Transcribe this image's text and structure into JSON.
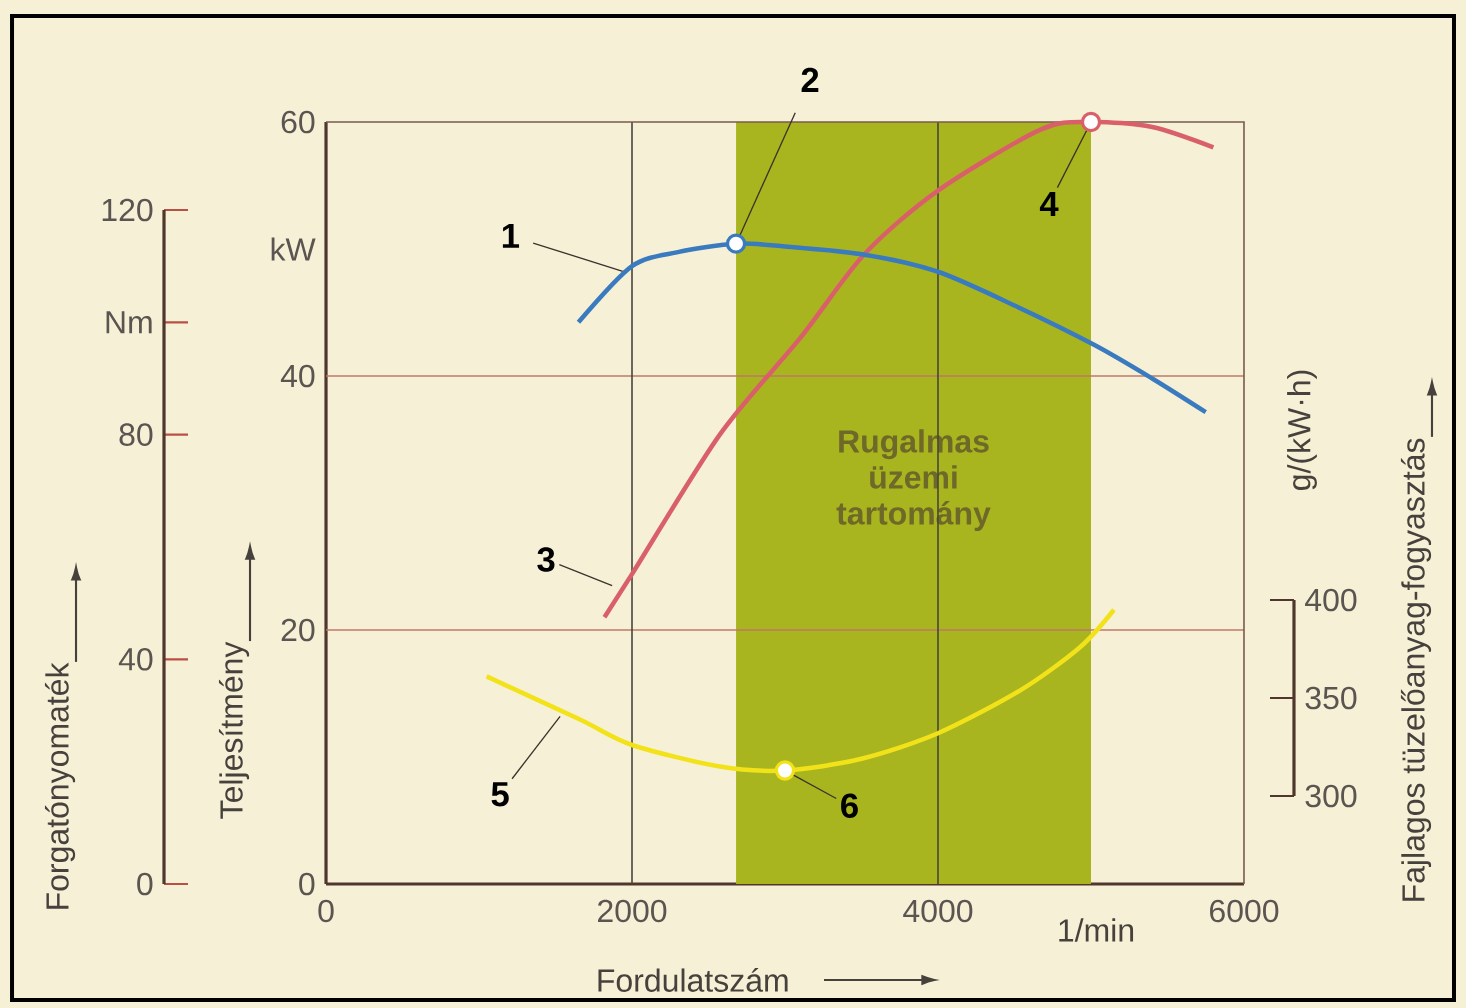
{
  "chart_data": {
    "type": "line",
    "xlabel": "Fordulatszám",
    "ylabel": "Teljesítmény",
    "y2label": "Forgatónyomaték",
    "y3label": "Fajlagos tüzelőanyag-fogyasztás",
    "xlim": [
      0,
      6000
    ],
    "xticks": [
      0,
      2000,
      4000,
      6000
    ],
    "ylim": [
      0,
      60
    ],
    "yticks": [
      0,
      20,
      40,
      {
        "value": 50,
        "label": "kW"
      },
      60
    ],
    "y2lim": [
      0,
      120
    ],
    "y2ticks": [
      0,
      40,
      80,
      {
        "value": 100,
        "label": "Nm"
      },
      120
    ],
    "y3lim": [
      300,
      400
    ],
    "y3ticks": [
      300,
      350,
      400
    ],
    "grid": true,
    "series": [
      {
        "axis": "y2",
        "color": "#3a7bbf",
        "x": [
          1650,
          2000,
          2300,
          2680,
          3000,
          3530,
          4000,
          4500,
          5020,
          5400,
          5750
        ],
        "values": [
          100,
          110,
          112.5,
          114,
          113.5,
          112,
          109,
          103,
          96,
          90,
          84
        ]
      },
      {
        "axis": "y",
        "color": "#d9606a",
        "x": [
          1820,
          2000,
          2575,
          3100,
          3520,
          4000,
          4670,
          5000,
          5400,
          5800
        ],
        "values": [
          21,
          24.4,
          35.4,
          43,
          49.6,
          54.6,
          59.4,
          60,
          59.6,
          58
        ]
      },
      {
        "axis": "y3",
        "color": "#f2e21a",
        "x": [
          1050,
          1660,
          2000,
          2575,
          3000,
          3500,
          4000,
          4540,
          4930,
          5150
        ],
        "values": [
          361,
          339,
          326,
          315,
          313,
          319,
          332,
          354,
          376,
          395
        ]
      },
      {
        "type": "scatter",
        "axis": "y2",
        "marker": "circle",
        "color": "#3a7bbf",
        "x": [
          2680
        ],
        "values": [
          114
        ]
      },
      {
        "type": "scatter",
        "axis": "y",
        "marker": "circle",
        "color": "#d9606a",
        "x": [
          5000
        ],
        "values": [
          60
        ]
      },
      {
        "type": "scatter",
        "axis": "y3",
        "marker": "circle",
        "color": "#f2e21a",
        "x": [
          3000
        ],
        "values": [
          313
        ]
      }
    ],
    "bands": [
      {
        "axis": "x",
        "from": 2680,
        "to": 5000,
        "label": "Rugalmas üzemi tartomány",
        "color": "#a9b51e"
      }
    ],
    "annotations": [
      {
        "text": "1",
        "x": 1950,
        "y": 48.2
      },
      {
        "text": "2",
        "x": 2680,
        "y": 50.4
      },
      {
        "text": "3",
        "x": 1870,
        "y": 23.5
      },
      {
        "text": "4",
        "x": 5000,
        "y": 60
      },
      {
        "text": "5",
        "x": 1530,
        "y": 13.2
      },
      {
        "text": "6",
        "x": 2990,
        "y": 9
      },
      "g/(kW·h)",
      "1/min"
    ]
  }
}
